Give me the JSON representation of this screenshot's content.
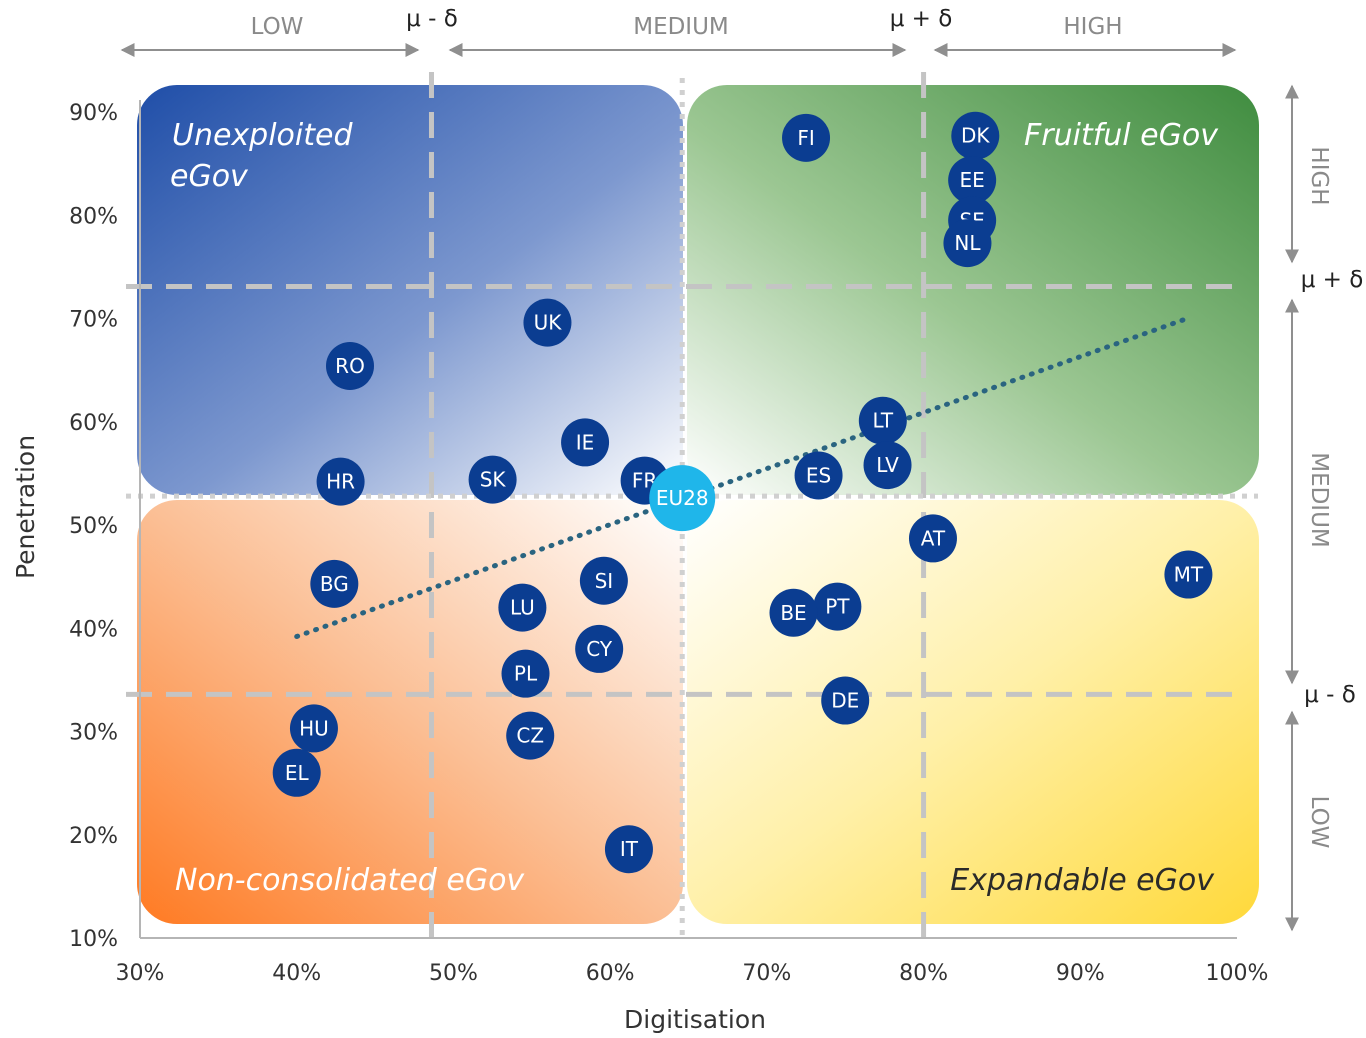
{
  "chart_data": {
    "type": "scatter",
    "title": "",
    "xlabel": "Digitisation",
    "ylabel": "Penetration",
    "xlim": [
      30,
      100
    ],
    "ylim": [
      10,
      90
    ],
    "x_ticks": [
      "30%",
      "40%",
      "50%",
      "60%",
      "70%",
      "80%",
      "90%",
      "100%"
    ],
    "y_ticks": [
      "10%",
      "20%",
      "30%",
      "40%",
      "50%",
      "60%",
      "70%",
      "80%",
      "90%"
    ],
    "x_tick_values": [
      30,
      40,
      50,
      60,
      70,
      80,
      90,
      100
    ],
    "y_tick_values": [
      10,
      20,
      30,
      40,
      50,
      60,
      70,
      80,
      90
    ],
    "x_bands": {
      "low": "LOW",
      "medium": "MEDIUM",
      "high": "HIGH"
    },
    "y_bands": {
      "low": "LOW",
      "medium": "MEDIUM",
      "high": "HIGH"
    },
    "thresholds": {
      "x_low": 48.6,
      "x_high": 80.0,
      "x_mean": 64.6,
      "y_low": 33.6,
      "y_high": 73.1,
      "y_mean": 52.8
    },
    "threshold_labels": {
      "x_low": "μ - δ",
      "x_high": "μ + δ",
      "y_high": "μ + δ",
      "y_low": "μ - δ"
    },
    "quadrants": {
      "top_left": [
        "Unexploited",
        "eGov"
      ],
      "top_right": "Fruitful eGov",
      "bottom_left": "Non-consolidated eGov",
      "bottom_right": "Expandable eGov"
    },
    "colors": {
      "top_left": "#1f4ea8",
      "top_right": "#3f8c3f",
      "bottom_left": "#ff7a22",
      "bottom_right": "#ffd93a",
      "point": "#0b3d91",
      "eu_point": "#1fb6ea",
      "trend": "#2a6480",
      "guide": "#c4c4c4"
    },
    "trendline": {
      "x": [
        40.0,
        97.0
      ],
      "y": [
        39.2,
        70.1
      ]
    },
    "points": [
      {
        "label": "FI",
        "x": 72.5,
        "y": 87.5
      },
      {
        "label": "DK",
        "x": 83.3,
        "y": 87.7
      },
      {
        "label": "EE",
        "x": 83.1,
        "y": 83.4
      },
      {
        "label": "SE",
        "x": 83.1,
        "y": 79.5
      },
      {
        "label": "NL",
        "x": 82.8,
        "y": 77.3
      },
      {
        "label": "UK",
        "x": 56.0,
        "y": 69.6
      },
      {
        "label": "RO",
        "x": 43.4,
        "y": 65.4
      },
      {
        "label": "LT",
        "x": 77.4,
        "y": 60.1
      },
      {
        "label": "IE",
        "x": 58.4,
        "y": 58.0
      },
      {
        "label": "LV",
        "x": 77.7,
        "y": 55.8
      },
      {
        "label": "ES",
        "x": 73.3,
        "y": 54.8
      },
      {
        "label": "SK",
        "x": 52.5,
        "y": 54.4
      },
      {
        "label": "HR",
        "x": 42.8,
        "y": 54.2
      },
      {
        "label": "FR",
        "x": 62.2,
        "y": 54.3
      },
      {
        "label": "EU28",
        "x": 64.6,
        "y": 52.6,
        "highlight": true
      },
      {
        "label": "AT",
        "x": 80.6,
        "y": 48.7
      },
      {
        "label": "MT",
        "x": 96.9,
        "y": 45.2
      },
      {
        "label": "BG",
        "x": 42.4,
        "y": 44.3
      },
      {
        "label": "SI",
        "x": 59.6,
        "y": 44.6
      },
      {
        "label": "LU",
        "x": 54.4,
        "y": 42.0
      },
      {
        "label": "PT",
        "x": 74.5,
        "y": 42.1
      },
      {
        "label": "BE",
        "x": 71.7,
        "y": 41.5
      },
      {
        "label": "CY",
        "x": 59.3,
        "y": 38.0
      },
      {
        "label": "PL",
        "x": 54.6,
        "y": 35.6
      },
      {
        "label": "DE",
        "x": 75.0,
        "y": 33.0
      },
      {
        "label": "HU",
        "x": 41.1,
        "y": 30.3
      },
      {
        "label": "CZ",
        "x": 54.9,
        "y": 29.6
      },
      {
        "label": "EL",
        "x": 40.0,
        "y": 26.0
      },
      {
        "label": "IT",
        "x": 61.2,
        "y": 18.6
      }
    ]
  }
}
